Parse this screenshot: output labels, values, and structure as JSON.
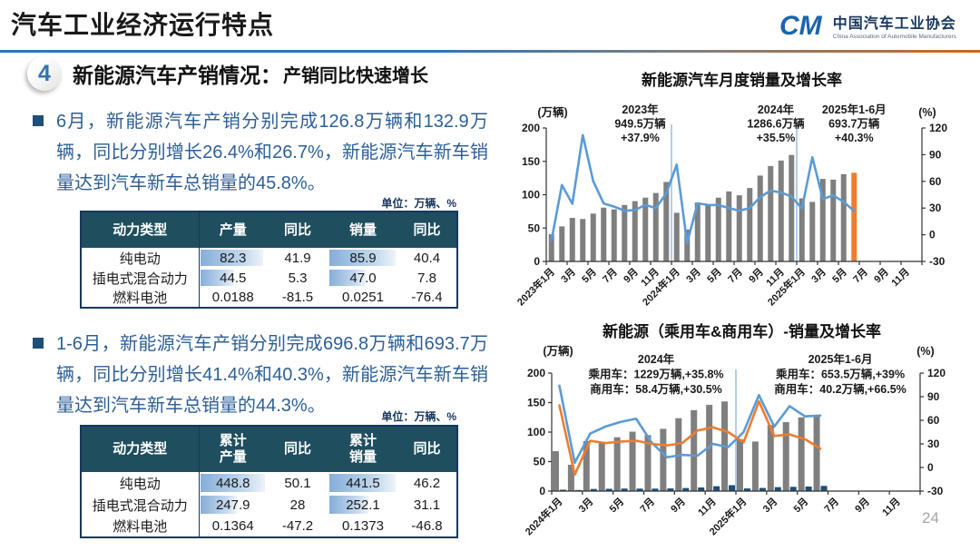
{
  "header": {
    "title": "汽车工业经济运行特点",
    "logo": {
      "mark": "CM",
      "name_cn": "中国汽车工业协会",
      "name_en": "China Association of Automobile Manufacturers"
    }
  },
  "section": {
    "number": "4",
    "title": "新能源汽车产销情况：",
    "subtitle": "产销同比快速增长"
  },
  "bullets": [
    {
      "text": "6月，新能源汽车产销分别完成126.8万辆和132.9万辆，同比分别增长26.4%和26.7%，新能源汽车新车销量达到汽车新车总销量的45.8%。",
      "unit_note": "单位：万辆、%"
    },
    {
      "text": "1-6月，新能源汽车产销分别完成696.8万辆和693.7万辆，同比分别增长41.4%和40.3%，新能源汽车新车销量达到汽车新车总销量的44.3%。",
      "unit_note": "单位：万辆、%"
    }
  ],
  "tables": [
    {
      "columns": [
        "动力类型",
        "产量",
        "同比",
        "销量",
        "同比"
      ],
      "rows": [
        {
          "cells": [
            {
              "v": "纯电动"
            },
            {
              "v": "82.3",
              "bar": 93
            },
            {
              "v": "41.9"
            },
            {
              "v": "85.9",
              "bar": 96
            },
            {
              "v": "40.4"
            }
          ]
        },
        {
          "cells": [
            {
              "v": "插电式混合动力"
            },
            {
              "v": "44.5",
              "bar": 50
            },
            {
              "v": "5.3"
            },
            {
              "v": "47.0",
              "bar": 53
            },
            {
              "v": "7.8"
            }
          ]
        },
        {
          "cells": [
            {
              "v": "燃料电池"
            },
            {
              "v": "0.0188"
            },
            {
              "v": "-81.5"
            },
            {
              "v": "0.0251"
            },
            {
              "v": "-76.4"
            }
          ]
        }
      ]
    },
    {
      "columns": [
        "动力类型",
        "累计\n产量",
        "同比",
        "累计\n销量",
        "同比"
      ],
      "rows": [
        {
          "cells": [
            {
              "v": "纯电动"
            },
            {
              "v": "448.8",
              "bar": 96
            },
            {
              "v": "50.1"
            },
            {
              "v": "441.5",
              "bar": 96
            },
            {
              "v": "46.2"
            }
          ]
        },
        {
          "cells": [
            {
              "v": "插电式混合动力"
            },
            {
              "v": "247.9",
              "bar": 55
            },
            {
              "v": "28"
            },
            {
              "v": "252.1",
              "bar": 57
            },
            {
              "v": "31.1"
            }
          ]
        },
        {
          "cells": [
            {
              "v": "燃料电池"
            },
            {
              "v": "0.1364"
            },
            {
              "v": "-47.2"
            },
            {
              "v": "0.1373"
            },
            {
              "v": "-46.8"
            }
          ]
        }
      ]
    }
  ],
  "chart_data": [
    {
      "type": "bar+line",
      "title": "新能源汽车月度销量及增长率",
      "left_axis_label": "(万辆)",
      "right_axis_label": "(%)",
      "left_ticks": [
        0,
        50,
        100,
        150,
        200
      ],
      "left_range": [
        0,
        200
      ],
      "right_ticks": [
        -30,
        0,
        30,
        60,
        90,
        120
      ],
      "right_range": [
        -30,
        120
      ],
      "slots": 36,
      "x_tick_labels": [
        "2023年1月",
        "3月",
        "5月",
        "7月",
        "9月",
        "11月",
        "2024年1月",
        "3月",
        "5月",
        "7月",
        "9月",
        "11月",
        "2025年1月",
        "3月",
        "5月",
        "7月",
        "9月",
        "11月"
      ],
      "dividers": [
        12,
        24
      ],
      "divider_color": "#9DC3E6",
      "bar_series": [
        {
          "name": "月度销量(万辆)",
          "color": "#7F7F7F",
          "last_color": "#ED7D31",
          "values": [
            40.8,
            52.5,
            65.3,
            63.6,
            71.7,
            80.6,
            78.0,
            84.6,
            90.4,
            95.6,
            102.6,
            119.1,
            72.9,
            47.7,
            88.3,
            85.0,
            95.5,
            104.9,
            99.1,
            110.0,
            128.7,
            143.0,
            151.2,
            159.6,
            94.5,
            89.2,
            123.7,
            122.6,
            130.7,
            132.9
          ]
        }
      ],
      "line_series": [
        {
          "name": "同比增长率(%)",
          "color": "#5B9BD5",
          "values": [
            -6.3,
            55.9,
            34.8,
            112.0,
            60.2,
            35.2,
            31.6,
            27.0,
            27.7,
            33.5,
            30.0,
            46.4,
            78.8,
            -9.2,
            35.3,
            33.5,
            33.3,
            30.1,
            27.0,
            30.0,
            42.3,
            49.6,
            47.4,
            43.0,
            29.4,
            87.1,
            40.1,
            44.2,
            36.9,
            26.7
          ]
        }
      ],
      "annotations": [
        {
          "slot": 9,
          "lines": [
            "2023年",
            "949.5万辆",
            "+37.9%"
          ]
        },
        {
          "slot": 22,
          "lines": [
            "2024年",
            "1286.6万辆",
            "+35.5%"
          ]
        },
        {
          "slot": 29.5,
          "lines": [
            "2025年1-6月",
            "693.7万辆",
            "+40.3%"
          ]
        }
      ]
    },
    {
      "type": "bar+line",
      "title": "新能源（乘用车&商用车）-销量及增长率",
      "left_axis_label": "(万辆)",
      "right_axis_label": "(%)",
      "left_ticks": [
        0,
        50,
        100,
        150,
        200
      ],
      "left_range": [
        0,
        200
      ],
      "right_ticks": [
        -30,
        0,
        30,
        60,
        90,
        120
      ],
      "right_range": [
        -30,
        120
      ],
      "slots": 24,
      "x_tick_labels": [
        "2024年1月",
        "3月",
        "5月",
        "7月",
        "9月",
        "11月",
        "2025年1月",
        "3月",
        "5月",
        "7月",
        "9月",
        "11月"
      ],
      "dividers": [
        12
      ],
      "divider_color": "#9DC3E6",
      "bar_series": [
        {
          "name": "乘用车月度销量(万辆)",
          "color": "#7F7F7F",
          "values": [
            67.6,
            44.6,
            84.7,
            81.1,
            91.2,
            100.7,
            94.9,
            105.5,
            123.5,
            137.2,
            146.1,
            151.9,
            88.0,
            84.0,
            112.0,
            117.0,
            125.0,
            127.5
          ]
        },
        {
          "name": "商用车月度销量(万辆)",
          "color": "#1F4E79",
          "values": [
            2.3,
            1.8,
            3.6,
            3.9,
            4.3,
            4.2,
            4.2,
            4.5,
            5.2,
            6.1,
            8.3,
            10.0,
            4.5,
            5.3,
            6.7,
            7.2,
            7.7,
            8.8
          ]
        }
      ],
      "line_series": [
        {
          "name": "乘用车同比增长率(%)",
          "color": "#5B9BD5",
          "values": [
            104,
            6,
            43,
            52,
            58,
            62,
            32,
            13,
            16,
            15,
            30,
            26,
            45,
            92,
            52,
            78,
            65,
            66
          ]
        },
        {
          "name": "商用车同比增长率(%)",
          "color": "#ED7D31",
          "values": [
            79,
            -9,
            34,
            31,
            33,
            34,
            30,
            28,
            31,
            47,
            51,
            45,
            32,
            84,
            40,
            42,
            36,
            24
          ]
        }
      ],
      "annotations": [
        {
          "slot": 6.8,
          "lines": [
            "2024年",
            "乘用车：1229万辆,+35.8%",
            "商用车：58.4万辆,+30.5%"
          ]
        },
        {
          "slot": 18.8,
          "lines": [
            "2025年1-6月",
            "乘用车：653.5万辆,+39%",
            "商用车：40.2万辆,+66.5%"
          ]
        }
      ]
    }
  ],
  "page_number": "24"
}
